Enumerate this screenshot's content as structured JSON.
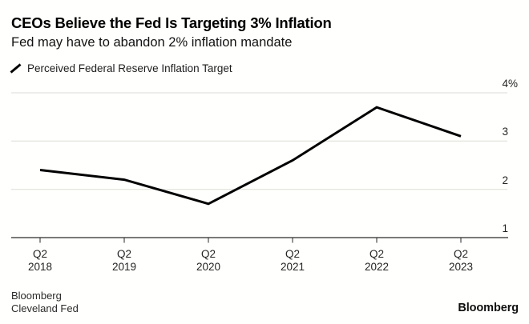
{
  "header": {
    "title": "CEOs Believe the Fed Is Targeting 3% Inflation",
    "subtitle": "Fed may have to abandon 2% inflation mandate"
  },
  "legend": {
    "label": "Perceived Federal Reserve Inflation Target",
    "marker_icon": "line-segment-icon",
    "marker_color": "#000000"
  },
  "chart_data": {
    "type": "line",
    "title": "CEOs Believe the Fed Is Targeting 3% Inflation",
    "subtitle": "Fed may have to abandon 2% inflation mandate",
    "categories": [
      "Q2 2018",
      "Q2 2019",
      "Q2 2020",
      "Q2 2021",
      "Q2 2022",
      "Q2 2023"
    ],
    "series": [
      {
        "name": "Perceived Federal Reserve Inflation Target",
        "values": [
          2.4,
          2.2,
          1.7,
          2.6,
          3.7,
          3.1
        ],
        "color": "#000000",
        "line_width": 3
      }
    ],
    "xlabel": "",
    "ylabel": "",
    "ylim": [
      1,
      4
    ],
    "y_ticks": [
      {
        "value": 4,
        "label": "4%"
      },
      {
        "value": 3,
        "label": "3"
      },
      {
        "value": 2,
        "label": "2"
      },
      {
        "value": 1,
        "label": "1"
      }
    ],
    "y_axis_side": "right",
    "grid": "horizontal",
    "legend_position": "top-left"
  },
  "footer": {
    "sources": [
      "Bloomberg",
      "Cleveland Fed"
    ],
    "brand": "Bloomberg"
  },
  "colors": {
    "background": "#fffffd",
    "grid": "#dbdbd6",
    "axis": "#2a2a2a",
    "line": "#000000",
    "text": "#000000",
    "muted_text": "#2b2b2b"
  }
}
